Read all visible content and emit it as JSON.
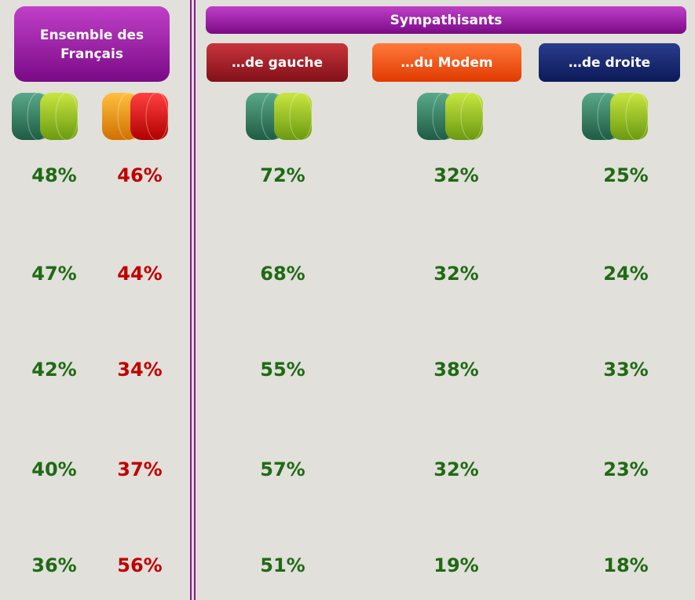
{
  "header": {
    "left_lines": [
      "Ensemble des",
      "Français"
    ],
    "group": "Sympathisants",
    "subgroups": [
      "…de gauche",
      "…du Modem",
      "…de droite"
    ]
  },
  "table": {
    "rows": [
      [
        "48%",
        "46%",
        "72%",
        "32%",
        "25%"
      ],
      [
        "47%",
        "44%",
        "68%",
        "32%",
        "24%"
      ],
      [
        "42%",
        "34%",
        "55%",
        "38%",
        "33%"
      ],
      [
        "40%",
        "37%",
        "57%",
        "32%",
        "23%"
      ],
      [
        "36%",
        "56%",
        "51%",
        "19%",
        "18%"
      ]
    ]
  }
}
